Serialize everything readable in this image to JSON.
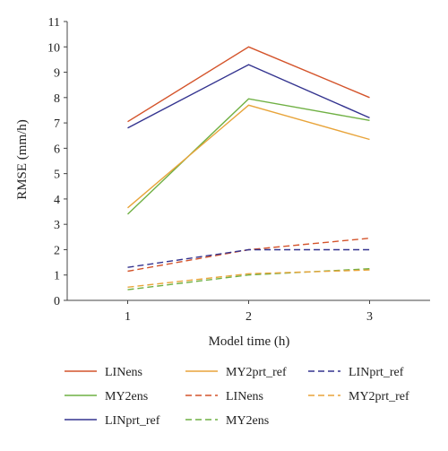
{
  "chart_data": {
    "type": "line",
    "title": "",
    "xlabel": "Model time (h)",
    "ylabel": "RMSE (mm/h)",
    "x": [
      1,
      2,
      3
    ],
    "xlim": [
      0.5,
      3.5
    ],
    "ylim": [
      0,
      11
    ],
    "xticks": [
      "1",
      "2",
      "3"
    ],
    "yticks": [
      "0",
      "1",
      "2",
      "3",
      "4",
      "5",
      "6",
      "7",
      "8",
      "9",
      "10",
      "11"
    ],
    "grid": false,
    "legend_position": "bottom",
    "series": [
      {
        "name": "LINens",
        "color": "#d4542b",
        "dash": "solid",
        "values": [
          7.05,
          10.0,
          8.0
        ]
      },
      {
        "name": "MY2ens",
        "color": "#6fb043",
        "dash": "solid",
        "values": [
          3.4,
          7.95,
          7.1
        ]
      },
      {
        "name": "LINprt_ref",
        "color": "#33338f",
        "dash": "solid",
        "values": [
          6.8,
          9.3,
          7.2
        ]
      },
      {
        "name": "MY2prt_ref",
        "color": "#e8a43a",
        "dash": "solid",
        "values": [
          3.65,
          7.7,
          6.35
        ]
      },
      {
        "name": "LINens",
        "color": "#d4542b",
        "dash": "dashed",
        "values": [
          1.15,
          2.0,
          2.45
        ]
      },
      {
        "name": "MY2ens",
        "color": "#6fb043",
        "dash": "dashed",
        "values": [
          0.42,
          1.0,
          1.25
        ]
      },
      {
        "name": "LINprt_ref",
        "color": "#33338f",
        "dash": "dashed",
        "values": [
          1.3,
          2.0,
          2.0
        ]
      },
      {
        "name": "MY2prt_ref",
        "color": "#e8a43a",
        "dash": "dashed",
        "values": [
          0.52,
          1.05,
          1.2
        ]
      }
    ],
    "legend_order": [
      0,
      3,
      6,
      1,
      4,
      7,
      2,
      5
    ]
  }
}
